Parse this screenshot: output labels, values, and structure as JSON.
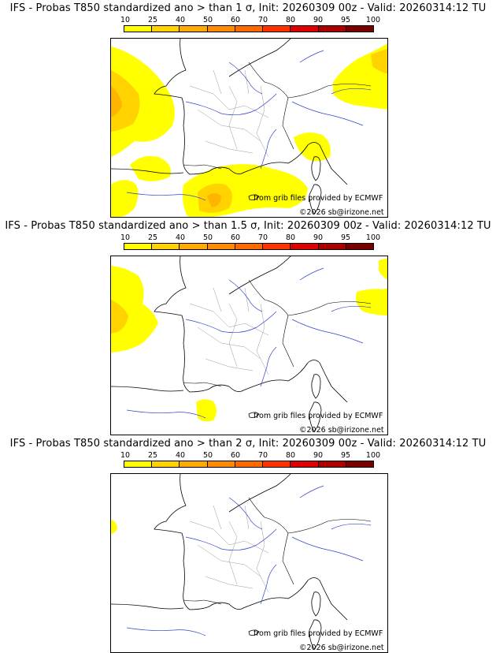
{
  "colorbar": {
    "ticks": [
      "10",
      "25",
      "40",
      "50",
      "60",
      "70",
      "80",
      "90",
      "95",
      "100"
    ],
    "colors": [
      "#ffff00",
      "#ffd200",
      "#ffaa00",
      "#ff8c00",
      "#ff6a00",
      "#ff3300",
      "#dd0000",
      "#aa0000",
      "#7a0000"
    ]
  },
  "panels": [
    {
      "title": "IFS - Probas T850  standardized ano > than 1 σ, Init: 20260309 00z - Valid: 20260314:12 TU",
      "credit_source": "from grib files provided by ECMWF",
      "credit_copyright": "©2026 sb@irizone.net"
    },
    {
      "title": "IFS - Probas T850  standardized ano > than 1.5 σ, Init: 20260309 00z - Valid: 20260314:12 TU",
      "credit_source": "from grib files provided by ECMWF",
      "credit_copyright": "©2026 sb@irizone.net"
    },
    {
      "title": "IFS - Probas T850  standardized ano > than 2 σ, Init: 20260309 00z - Valid: 20260314:12 TU",
      "credit_source": "from grib files provided by ECMWF",
      "credit_copyright": "©2026 sb@irizone.net"
    }
  ]
}
